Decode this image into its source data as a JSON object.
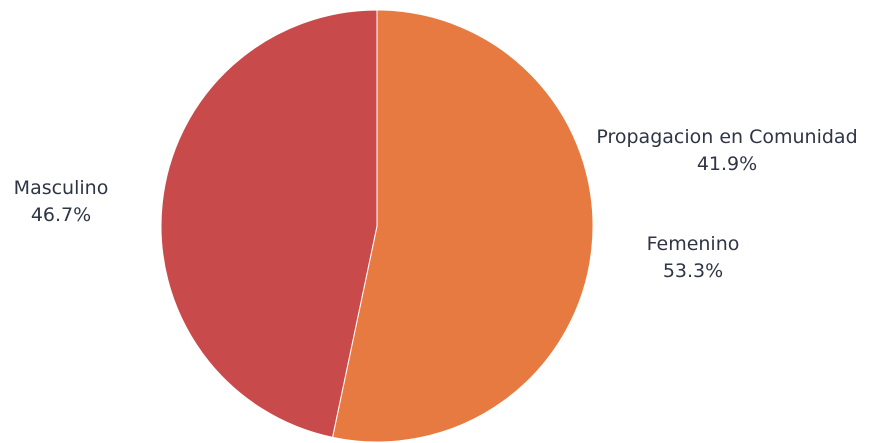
{
  "chart_data": {
    "type": "pie",
    "slices": [
      {
        "label": "Femenino",
        "value": 53.3,
        "value_label": "53.3%",
        "color": "#e67a40"
      },
      {
        "label": "Masculino",
        "value": 46.7,
        "value_label": "46.7%",
        "color": "#c94a4a"
      }
    ],
    "annotations": [
      {
        "label": "Propagacion en Comunidad",
        "value_label": "41.9%"
      }
    ],
    "start_angle": "12 o'clock",
    "direction": "clockwise",
    "legend": "none"
  }
}
